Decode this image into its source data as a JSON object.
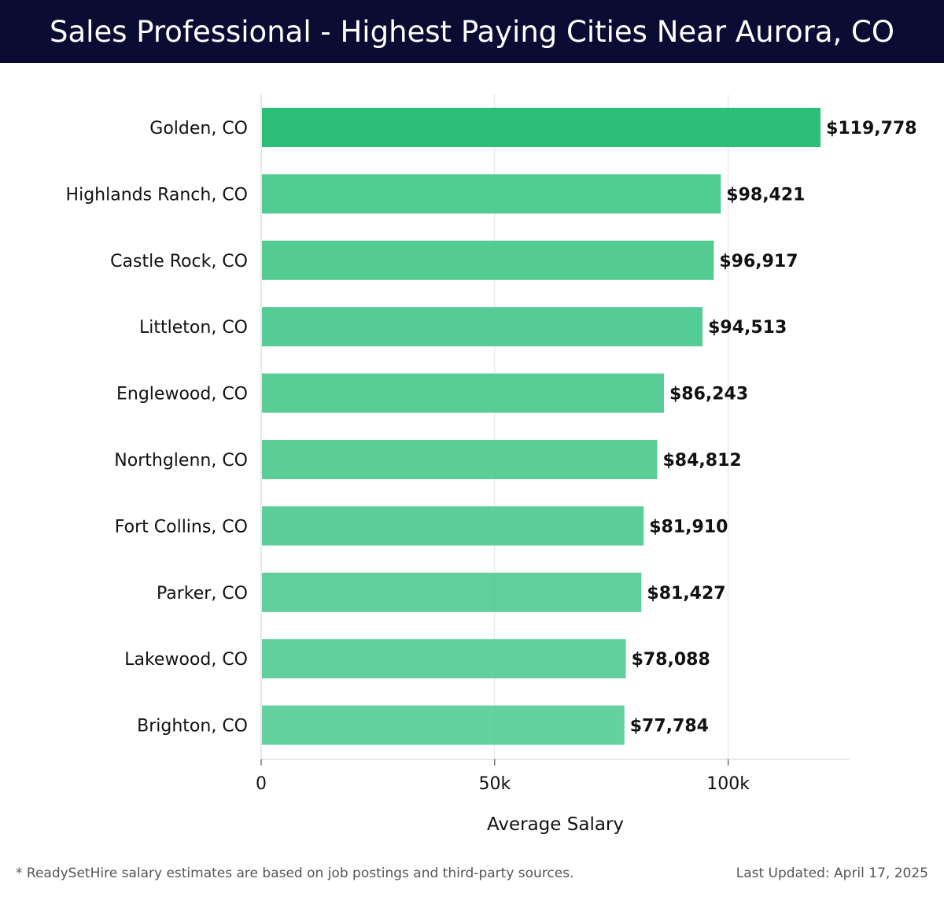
{
  "title": "Sales Professional - Highest Paying Cities Near Aurora, CO",
  "footnote": "* ReadySetHire salary estimates are based on job postings and third-party sources.",
  "last_updated": "Last Updated: April 17, 2025",
  "colors": {
    "header_bg": "#0b0c33",
    "bar_top": "#2bbf77",
    "bar_other": "#44c78a"
  },
  "chart_data": {
    "type": "bar",
    "orientation": "horizontal",
    "categories": [
      "Golden, CO",
      "Highlands Ranch, CO",
      "Castle Rock, CO",
      "Littleton, CO",
      "Englewood, CO",
      "Northglenn, CO",
      "Fort Collins, CO",
      "Parker, CO",
      "Lakewood, CO",
      "Brighton, CO"
    ],
    "values": [
      119778,
      98421,
      96917,
      94513,
      86243,
      84812,
      81910,
      81427,
      78088,
      77784
    ],
    "value_labels": [
      "$119,778",
      "$98,421",
      "$96,917",
      "$94,513",
      "$86,243",
      "$84,812",
      "$81,910",
      "$81,427",
      "$78,088",
      "$77,784"
    ],
    "xlabel": "Average Salary",
    "ylabel": "",
    "xlim": [
      0,
      126000
    ],
    "xticks": [
      0,
      50000,
      100000
    ],
    "xtick_labels": [
      "0",
      "50k",
      "100k"
    ],
    "grid": "vertical"
  }
}
